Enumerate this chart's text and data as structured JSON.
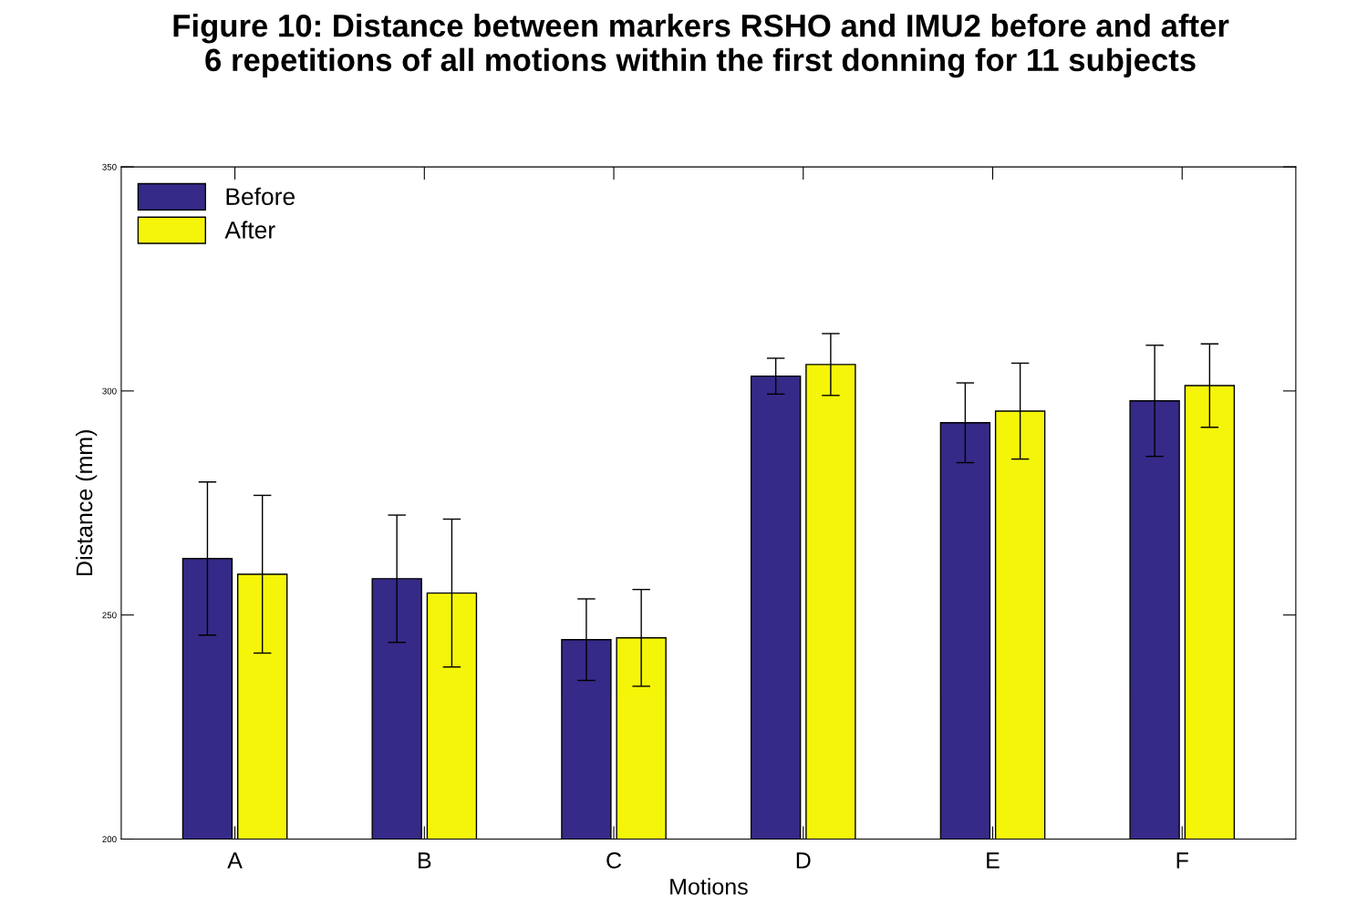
{
  "chart_data": {
    "type": "bar",
    "title": "Figure 10: Distance between markers RSHO and IMU2 before and after\n6 repetitions of all motions within the first donning for 11 subjects",
    "xlabel": "Motions",
    "ylabel": "Distance (mm)",
    "categories": [
      "A",
      "B",
      "C",
      "D",
      "E",
      "F"
    ],
    "series": [
      {
        "name": "Before",
        "color": "#352a87",
        "values": [
          262.6,
          258.1,
          244.5,
          303.3,
          292.9,
          297.8
        ],
        "errors": [
          17.1,
          14.2,
          9.1,
          4.0,
          8.9,
          12.4
        ]
      },
      {
        "name": "After",
        "color": "#f5f50a",
        "values": [
          259.1,
          254.9,
          244.9,
          305.9,
          295.5,
          301.2
        ],
        "errors": [
          17.6,
          16.5,
          10.8,
          6.9,
          10.7,
          9.3
        ]
      }
    ],
    "ylim": [
      200,
      350
    ],
    "yticks": [
      200,
      250,
      300,
      350
    ],
    "grid": false,
    "legend": "top left"
  }
}
